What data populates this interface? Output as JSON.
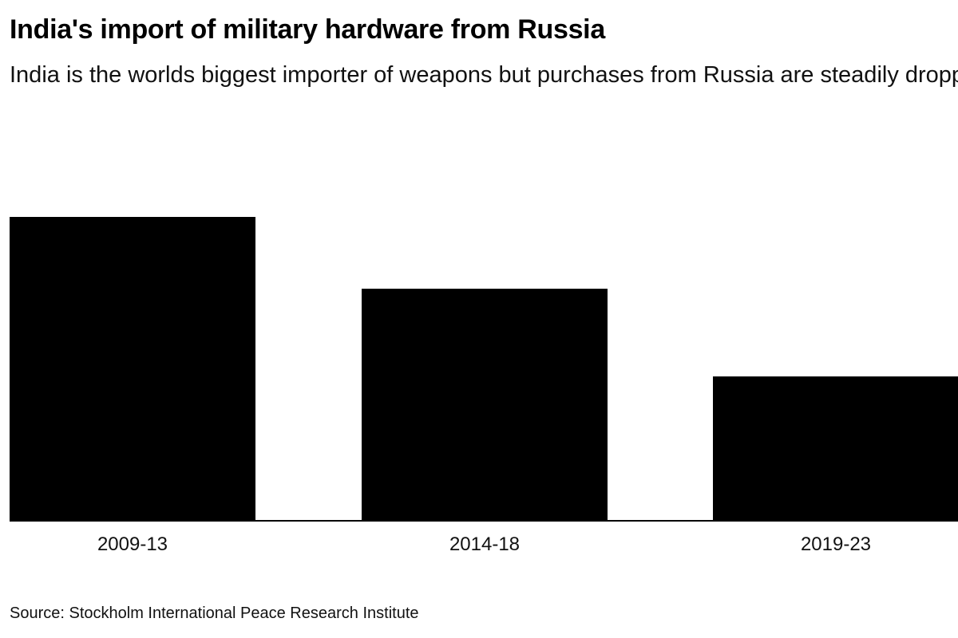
{
  "title": "India's import of military hardware from Russia",
  "subtitle": "India is the worlds biggest importer of weapons but purchases from Russia are steadily dropping",
  "source": "Source: Stockholm International Peace Research Institute",
  "chart_data": {
    "type": "bar",
    "categories": [
      "2009-13",
      "2014-18",
      "2019-23"
    ],
    "values": [
      76,
      58,
      36
    ],
    "ylim": [
      0,
      100
    ],
    "grid": false,
    "bar_color": "#000000"
  }
}
